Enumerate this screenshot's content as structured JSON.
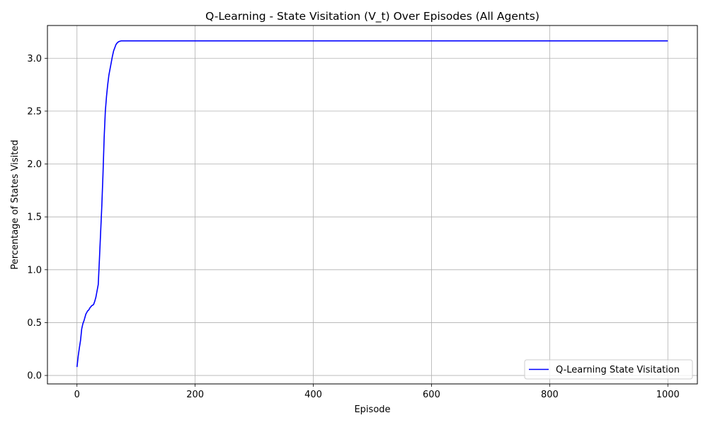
{
  "chart_data": {
    "type": "line",
    "title": "Q-Learning - State Visitation (V_t) Over Episodes (All Agents)",
    "xlabel": "Episode",
    "ylabel": "Percentage of States Visited",
    "xlim": [
      -50,
      1050
    ],
    "ylim": [
      -0.08,
      3.31
    ],
    "xticks": [
      0,
      200,
      400,
      600,
      800,
      1000
    ],
    "xtick_labels": [
      "0",
      "200",
      "400",
      "600",
      "800",
      "1000"
    ],
    "yticks": [
      0.0,
      0.5,
      1.0,
      1.5,
      2.0,
      2.5,
      3.0
    ],
    "ytick_labels": [
      "0.0",
      "0.5",
      "1.0",
      "1.5",
      "2.0",
      "2.5",
      "3.0"
    ],
    "grid": true,
    "legend_position": "lower-right",
    "series": [
      {
        "name": "Q-Learning State Visitation",
        "color": "#0000ff",
        "x": [
          0,
          2,
          4,
          6,
          8,
          10,
          12,
          15,
          18,
          20,
          22,
          25,
          28,
          30,
          32,
          34,
          36,
          38,
          40,
          42,
          44,
          46,
          48,
          50,
          52,
          54,
          56,
          58,
          60,
          62,
          64,
          66,
          68,
          70,
          72,
          75,
          80,
          100,
          200,
          300,
          400,
          500,
          600,
          700,
          800,
          900,
          1000
        ],
        "y": [
          0.08,
          0.18,
          0.26,
          0.33,
          0.44,
          0.49,
          0.52,
          0.58,
          0.61,
          0.62,
          0.64,
          0.66,
          0.67,
          0.7,
          0.74,
          0.8,
          0.86,
          1.1,
          1.35,
          1.6,
          1.9,
          2.25,
          2.5,
          2.64,
          2.75,
          2.84,
          2.9,
          2.96,
          3.02,
          3.07,
          3.1,
          3.13,
          3.145,
          3.155,
          3.16,
          3.165,
          3.165,
          3.165,
          3.165,
          3.165,
          3.165,
          3.165,
          3.165,
          3.165,
          3.165,
          3.165,
          3.165
        ]
      }
    ]
  }
}
